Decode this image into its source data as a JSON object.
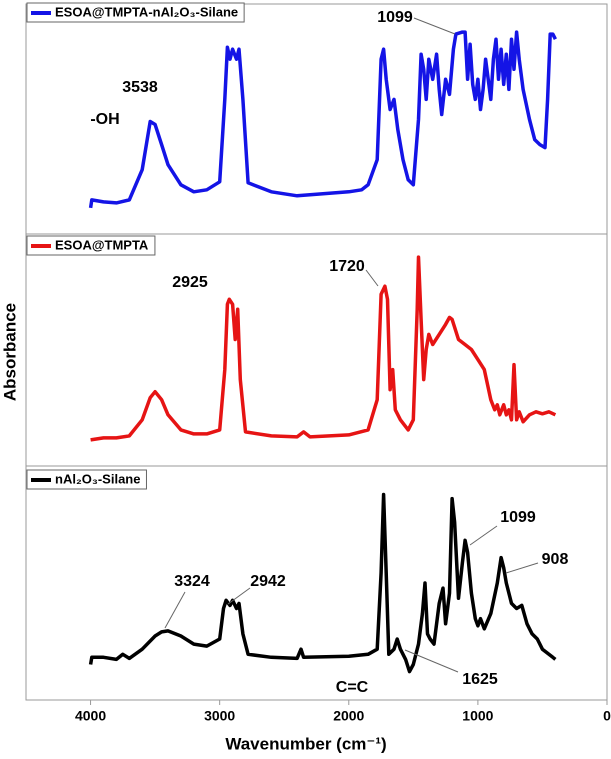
{
  "chart_data": {
    "type": "line",
    "xlabel": "Wavenumber (cm⁻¹)",
    "ylabel": "Absorbance",
    "xlim": [
      4500,
      0
    ],
    "xticks": [
      4000,
      3000,
      2000,
      1000,
      0
    ],
    "ylim": [
      0,
      225
    ],
    "series": [
      {
        "name": "ESOA@TMPTA-nAl₂O₃-Silane",
        "color": "#1414e6",
        "annotations": [
          "3538",
          "-OH",
          "1099"
        ],
        "x": [
          4000,
          3990,
          3900,
          3800,
          3700,
          3600,
          3538,
          3500,
          3450,
          3400,
          3300,
          3200,
          3100,
          3000,
          2960,
          2940,
          2920,
          2900,
          2870,
          2850,
          2820,
          2780,
          2600,
          2400,
          2200,
          2000,
          1900,
          1850,
          1780,
          1750,
          1730,
          1710,
          1680,
          1650,
          1620,
          1580,
          1540,
          1500,
          1460,
          1440,
          1420,
          1400,
          1380,
          1350,
          1320,
          1300,
          1280,
          1250,
          1220,
          1190,
          1170,
          1120,
          1099,
          1080,
          1060,
          1040,
          1020,
          1000,
          980,
          960,
          940,
          900,
          880,
          860,
          840,
          820,
          800,
          780,
          760,
          740,
          720,
          700,
          680,
          650,
          600,
          560,
          520,
          480,
          460,
          440,
          420,
          400
        ],
        "values": [
          22,
          30,
          28,
          27,
          30,
          60,
          108,
          105,
          85,
          65,
          45,
          38,
          40,
          48,
          130,
          182,
          170,
          180,
          170,
          180,
          130,
          47,
          38,
          34,
          36,
          38,
          40,
          45,
          70,
          170,
          180,
          150,
          120,
          130,
          100,
          70,
          50,
          45,
          110,
          175,
          160,
          130,
          170,
          150,
          175,
          140,
          115,
          150,
          135,
          180,
          195,
          197,
          197,
          150,
          185,
          145,
          130,
          150,
          120,
          140,
          170,
          130,
          170,
          190,
          150,
          180,
          145,
          175,
          140,
          190,
          160,
          197,
          170,
          140,
          110,
          90,
          85,
          82,
          130,
          195,
          195,
          190
        ]
      },
      {
        "name": "ESOA@TMPTA",
        "color": "#e61414",
        "annotations": [
          "2925",
          "1720"
        ],
        "x": [
          4000,
          3900,
          3800,
          3700,
          3600,
          3538,
          3500,
          3450,
          3400,
          3300,
          3200,
          3100,
          3000,
          2960,
          2940,
          2925,
          2900,
          2880,
          2860,
          2840,
          2800,
          2600,
          2400,
          2350,
          2300,
          2000,
          1850,
          1780,
          1750,
          1720,
          1700,
          1680,
          1660,
          1640,
          1600,
          1540,
          1500,
          1470,
          1460,
          1440,
          1420,
          1400,
          1380,
          1350,
          1300,
          1250,
          1220,
          1200,
          1150,
          1100,
          1050,
          1000,
          950,
          900,
          870,
          850,
          830,
          800,
          780,
          760,
          740,
          720,
          700,
          680,
          650,
          600,
          550,
          500,
          450,
          400
        ],
        "values": [
          20,
          22,
          22,
          24,
          40,
          62,
          68,
          60,
          45,
          30,
          26,
          26,
          30,
          90,
          155,
          160,
          155,
          120,
          150,
          80,
          28,
          24,
          23,
          28,
          23,
          25,
          30,
          60,
          165,
          173,
          160,
          70,
          90,
          50,
          40,
          30,
          40,
          150,
          202,
          140,
          80,
          110,
          125,
          115,
          125,
          135,
          142,
          140,
          120,
          115,
          110,
          100,
          90,
          60,
          50,
          55,
          45,
          55,
          45,
          50,
          40,
          95,
          40,
          48,
          38,
          45,
          48,
          46,
          48,
          45
        ]
      },
      {
        "name": "nAl₂O₃-Silane",
        "color": "#000000",
        "annotations": [
          "3324",
          "2942",
          "1099",
          "908",
          "1625",
          "C=C"
        ],
        "x": [
          4000,
          3990,
          3900,
          3800,
          3750,
          3700,
          3600,
          3500,
          3450,
          3400,
          3300,
          3200,
          3100,
          3000,
          2970,
          2950,
          2920,
          2900,
          2870,
          2850,
          2820,
          2780,
          2600,
          2400,
          2370,
          2350,
          2000,
          1850,
          1780,
          1750,
          1730,
          1710,
          1690,
          1650,
          1625,
          1600,
          1560,
          1530,
          1500,
          1460,
          1430,
          1410,
          1390,
          1370,
          1340,
          1300,
          1270,
          1250,
          1220,
          1200,
          1180,
          1150,
          1120,
          1099,
          1080,
          1050,
          1020,
          1000,
          980,
          950,
          900,
          850,
          820,
          800,
          780,
          740,
          700,
          660,
          620,
          580,
          540,
          500,
          450,
          420,
          400
        ],
        "values": [
          30,
          37,
          37,
          35,
          40,
          36,
          45,
          58,
          62,
          63,
          58,
          50,
          48,
          55,
          85,
          93,
          88,
          93,
          85,
          90,
          60,
          40,
          37,
          36,
          45,
          37,
          38,
          40,
          45,
          120,
          197,
          120,
          40,
          45,
          55,
          45,
          35,
          23,
          30,
          50,
          80,
          110,
          60,
          55,
          50,
          90,
          105,
          70,
          100,
          193,
          170,
          95,
          130,
          152,
          140,
          100,
          75,
          68,
          75,
          65,
          80,
          110,
          135,
          125,
          110,
          90,
          85,
          88,
          70,
          60,
          55,
          45,
          40,
          37,
          35
        ]
      }
    ]
  }
}
